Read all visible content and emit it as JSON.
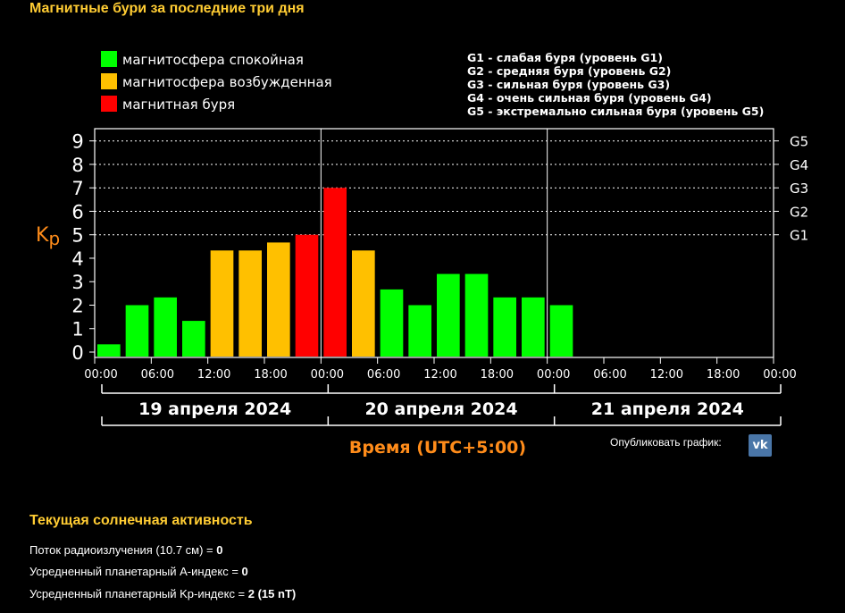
{
  "page": {
    "title": "Магнитные бури за последние три дня",
    "publish_label": "Опубликовать график:",
    "vk_icon": "vk-icon"
  },
  "chart_data": {
    "type": "bar",
    "title": "Магнитные бури за последние три дня",
    "ylabel": "Kp",
    "xlabel": "Время (UTC+5:00)",
    "ylim": [
      0,
      9
    ],
    "y_ticks": [
      "0",
      "1",
      "2",
      "3",
      "4",
      "5",
      "6",
      "7",
      "8",
      "9"
    ],
    "g_levels": [
      {
        "label": "G1",
        "kp": 5
      },
      {
        "label": "G2",
        "kp": 6
      },
      {
        "label": "G3",
        "kp": 7
      },
      {
        "label": "G4",
        "kp": 8
      },
      {
        "label": "G5",
        "kp": 9
      }
    ],
    "x_ticks": [
      "00:00",
      "06:00",
      "12:00",
      "18:00",
      "00:00",
      "06:00",
      "12:00",
      "18:00",
      "00:00",
      "06:00",
      "12:00",
      "18:00",
      "00:00"
    ],
    "days": [
      "19 апреля 2024",
      "20 апреля 2024",
      "21 апреля 2024"
    ],
    "total_slots": 24,
    "values": [
      0.33,
      2,
      2.33,
      1.33,
      4.33,
      4.33,
      4.67,
      5,
      7,
      4.33,
      2.67,
      2,
      3.33,
      3.33,
      2.33,
      2.33,
      2
    ],
    "levels": [
      "quiet",
      "quiet",
      "quiet",
      "quiet",
      "excited",
      "excited",
      "excited",
      "storm",
      "storm",
      "excited",
      "quiet",
      "quiet",
      "quiet",
      "quiet",
      "quiet",
      "quiet",
      "quiet"
    ],
    "legend": [
      {
        "key": "quiet",
        "label": "магнитосфера спокойная",
        "color": "#00ff00"
      },
      {
        "key": "excited",
        "label": "магнитосфера возбужденная",
        "color": "#ffc000"
      },
      {
        "key": "storm",
        "label": "магнитная буря",
        "color": "#ff0000"
      }
    ],
    "g_legend": [
      "G1 - слабая буря (уровень G1)",
      "G2 - средняя буря (уровень G2)",
      "G3 - сильная буря (уровень G3)",
      "G4 - очень сильная буря (уровень G4)",
      "G5 - экстремально сильная буря (уровень G5)"
    ],
    "colors": {
      "axis": "#ffffff",
      "xlabel": "#ff8c1a",
      "ylabel": "#ff8c1a",
      "grid": "#ffffff"
    }
  },
  "solar": {
    "title": "Текущая солнечная активность",
    "radio_flux": {
      "label": "Поток радиоизлучения (10.7 см) = ",
      "value": "0"
    },
    "a_index": {
      "label": "Усредненный планетарный А-индекс = ",
      "value": "0"
    },
    "kp_index": {
      "label": "Усредненный планетарный Kp-индекс = ",
      "value": "2 (15 nT)"
    }
  }
}
